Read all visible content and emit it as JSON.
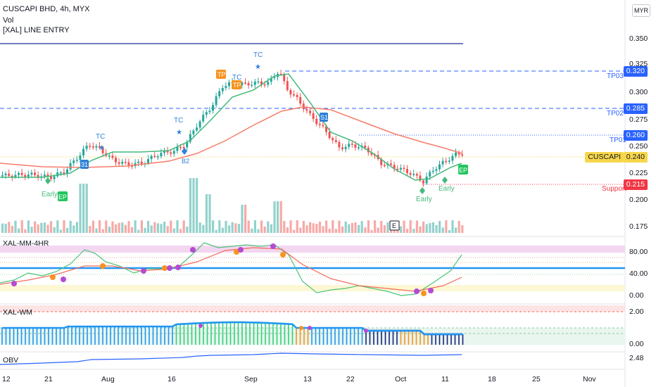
{
  "legend": {
    "symbol": "CUSCAPI BHD, 4h, MYX",
    "volume": "Vol",
    "indicator": "[XAL] LINE ENTRY"
  },
  "currency_button": "MYR",
  "price_axis": [
    "0.350",
    "0.325",
    "0.300",
    "0.275",
    "0.250",
    "0.225",
    "0.200",
    "0.175"
  ],
  "price_tags": [
    {
      "label": "TP03",
      "value": "0.320",
      "color": "#2962ff"
    },
    {
      "label": "TP02",
      "value": "0.285",
      "color": "#2962ff"
    },
    {
      "label": "TP01",
      "value": "0.260",
      "color": "#2962ff"
    },
    {
      "label": "CUSCAPI",
      "value": "0.240",
      "color": "#f7d64a"
    },
    {
      "label": "Support",
      "value": "0.215",
      "color": "#f23645"
    }
  ],
  "markers": {
    "tc": "TC",
    "tp": "TP",
    "b2": "B2",
    "s1": "S1",
    "b1": "31",
    "ep": "EP",
    "early": "Early",
    "e_badge": "E"
  },
  "osc_panel": {
    "title": "XAL-MM-4HR",
    "axis": [
      "80.00",
      "40.00",
      "0.00"
    ]
  },
  "wm_panel": {
    "title": "XAL-WM",
    "axis": [
      "2.00",
      "0.00"
    ]
  },
  "obv_panel": {
    "title": "OBV",
    "value": "2.48"
  },
  "time_axis": [
    "12",
    "21",
    "Aug",
    "16",
    "Sep",
    "13",
    "22",
    "Oct",
    "11",
    "18",
    "25",
    "Nov"
  ],
  "colors": {
    "up": "#26a69a",
    "down": "#ef5350",
    "ema": "#f77c6a",
    "signal": "#45b97c",
    "blue": "#2962ff"
  }
}
